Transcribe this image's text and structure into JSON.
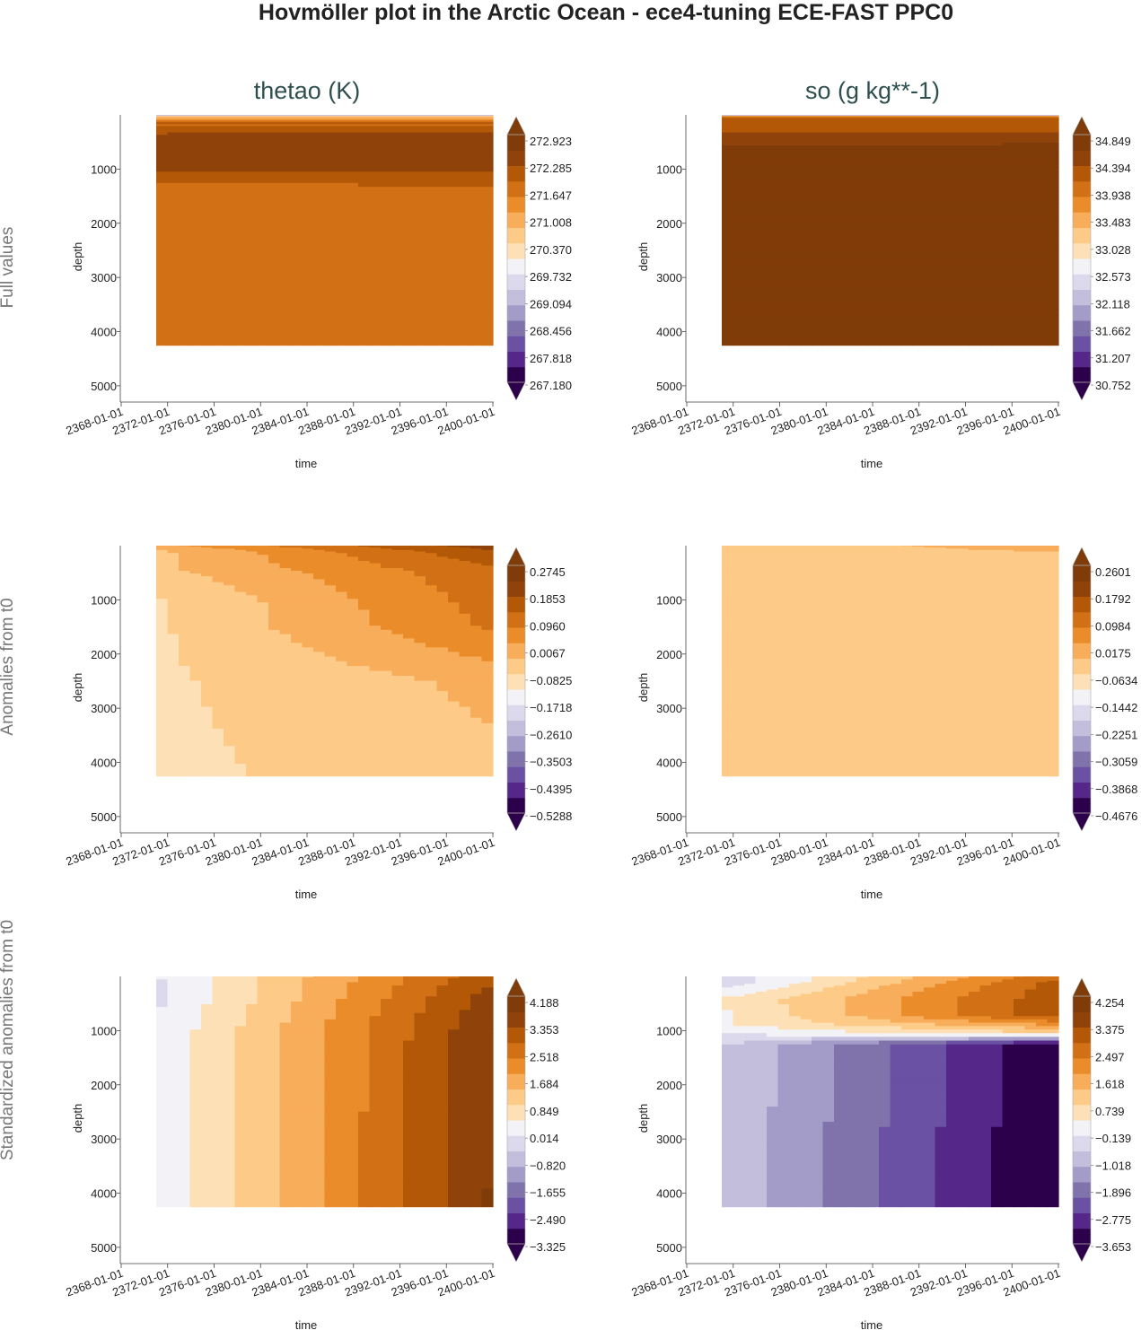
{
  "title": "Hovmöller plot in the Arctic Ocean - ece4-tuning ECE-FAST PPC0",
  "column_titles": [
    "thetao (K)",
    "so (g kg**-1)"
  ],
  "row_labels": [
    "Full values",
    "Anomalies from t0",
    "Standardized anomalies from t0"
  ],
  "colors": {
    "palette_PuOr_r_low_to_high": [
      "#2d004b",
      "#542788",
      "#6a51a3",
      "#8073ac",
      "#a39bc8",
      "#c2bedc",
      "#dcd9ec",
      "#f2f2f7",
      "#fee0b6",
      "#fdcb87",
      "#f8ad5a",
      "#ea8c2a",
      "#d17015",
      "#b35806",
      "#8f430a",
      "#7f3b08"
    ]
  },
  "chart_data": [
    {
      "type": "heatmap",
      "subtype": "filled-contour",
      "row": "Full values",
      "variable": "thetao (K)",
      "xlabel": "time",
      "ylabel": "depth",
      "xticks": [
        "2368-01-01",
        "2372-01-01",
        "2376-01-01",
        "2380-01-01",
        "2384-01-01",
        "2388-01-01",
        "2392-01-01",
        "2396-01-01",
        "2400-01-01"
      ],
      "yticks": [
        1000,
        2000,
        3000,
        4000,
        5000
      ],
      "ylim": [
        5300,
        0
      ],
      "data_depth_range": [
        0,
        4250
      ],
      "time_range": [
        "2369-10-01",
        "2400-06-01"
      ],
      "colorbar": [
        267.18,
        267.818,
        268.456,
        269.094,
        269.732,
        270.37,
        271.008,
        271.647,
        272.285,
        272.923
      ],
      "depth_profile": [
        [
          0,
          268.6
        ],
        [
          30,
          270.9
        ],
        [
          80,
          271.5
        ],
        [
          150,
          272.3
        ],
        [
          200,
          272.1
        ],
        [
          400,
          272.7
        ],
        [
          1000,
          272.6
        ],
        [
          1300,
          272.1
        ],
        [
          4250,
          272.0
        ]
      ],
      "depth_profile_end": [
        [
          0,
          268.6
        ],
        [
          30,
          270.9
        ],
        [
          80,
          271.5
        ],
        [
          150,
          272.3
        ],
        [
          200,
          272.1
        ],
        [
          400,
          272.8
        ],
        [
          1000,
          272.6
        ],
        [
          1350,
          272.1
        ],
        [
          4250,
          272.0
        ]
      ]
    },
    {
      "type": "heatmap",
      "subtype": "filled-contour",
      "row": "Full values",
      "variable": "so (g kg**-1)",
      "xlabel": "time",
      "ylabel": "depth",
      "xticks": [
        "2368-01-01",
        "2372-01-01",
        "2376-01-01",
        "2380-01-01",
        "2384-01-01",
        "2388-01-01",
        "2392-01-01",
        "2396-01-01",
        "2400-01-01"
      ],
      "yticks": [
        1000,
        2000,
        3000,
        4000,
        5000
      ],
      "ylim": [
        5300,
        0
      ],
      "data_depth_range": [
        0,
        4250
      ],
      "time_range": [
        "2369-10-01",
        "2400-06-01"
      ],
      "colorbar": [
        30.752,
        31.207,
        31.662,
        32.118,
        32.573,
        33.028,
        33.483,
        33.938,
        34.394,
        34.849
      ],
      "depth_profile": [
        [
          0,
          31.5
        ],
        [
          20,
          33.7
        ],
        [
          60,
          34.3
        ],
        [
          250,
          34.5
        ],
        [
          600,
          34.9
        ],
        [
          4250,
          34.92
        ]
      ],
      "depth_profile_end": [
        [
          0,
          31.5
        ],
        [
          20,
          33.7
        ],
        [
          60,
          34.3
        ],
        [
          250,
          34.5
        ],
        [
          580,
          34.9
        ],
        [
          4250,
          34.92
        ]
      ]
    },
    {
      "type": "heatmap",
      "subtype": "filled-contour",
      "row": "Anomalies from t0",
      "variable": "thetao (K)",
      "xlabel": "time",
      "ylabel": "depth",
      "xticks": [
        "2368-01-01",
        "2372-01-01",
        "2376-01-01",
        "2380-01-01",
        "2384-01-01",
        "2388-01-01",
        "2392-01-01",
        "2396-01-01",
        "2400-01-01"
      ],
      "yticks": [
        1000,
        2000,
        3000,
        4000,
        5000
      ],
      "ylim": [
        5300,
        0
      ],
      "data_depth_range": [
        0,
        4250
      ],
      "time_range": [
        "2369-10-01",
        "2400-06-01"
      ],
      "colorbar": [
        -0.5288,
        -0.4395,
        -0.3503,
        -0.261,
        -0.1718,
        -0.0825,
        0.0067,
        0.096,
        0.1853,
        0.2745
      ],
      "depth_profile": [
        [
          0,
          0.05
        ],
        [
          100,
          0.0
        ],
        [
          400,
          0.0
        ],
        [
          1000,
          -0.05
        ],
        [
          4250,
          -0.06
        ]
      ],
      "depth_profile_end": [
        [
          0,
          0.25
        ],
        [
          150,
          0.2
        ],
        [
          500,
          0.15
        ],
        [
          1500,
          0.12
        ],
        [
          2500,
          0.02
        ],
        [
          4250,
          -0.01
        ]
      ]
    },
    {
      "type": "heatmap",
      "subtype": "filled-contour",
      "row": "Anomalies from t0",
      "variable": "so (g kg**-1)",
      "xlabel": "time",
      "ylabel": "depth",
      "xticks": [
        "2368-01-01",
        "2372-01-01",
        "2376-01-01",
        "2380-01-01",
        "2384-01-01",
        "2388-01-01",
        "2392-01-01",
        "2396-01-01",
        "2400-01-01"
      ],
      "yticks": [
        1000,
        2000,
        3000,
        4000,
        5000
      ],
      "ylim": [
        5300,
        0
      ],
      "data_depth_range": [
        0,
        4250
      ],
      "time_range": [
        "2369-10-01",
        "2400-06-01"
      ],
      "colorbar": [
        -0.4676,
        -0.3868,
        -0.3059,
        -0.2251,
        -0.1442,
        -0.0634,
        0.0175,
        0.0984,
        0.1792,
        0.2601
      ],
      "depth_profile": [
        [
          0,
          -0.02
        ],
        [
          100,
          -0.03
        ],
        [
          4250,
          -0.03
        ]
      ],
      "depth_profile_end": [
        [
          0,
          0.05
        ],
        [
          80,
          0.03
        ],
        [
          200,
          -0.02
        ],
        [
          4250,
          -0.03
        ]
      ]
    },
    {
      "type": "heatmap",
      "subtype": "filled-contour",
      "row": "Standardized anomalies from t0",
      "variable": "thetao (K)",
      "xlabel": "time",
      "ylabel": "depth",
      "xticks": [
        "2368-01-01",
        "2372-01-01",
        "2376-01-01",
        "2380-01-01",
        "2384-01-01",
        "2388-01-01",
        "2392-01-01",
        "2396-01-01",
        "2400-01-01"
      ],
      "yticks": [
        1000,
        2000,
        3000,
        4000,
        5000
      ],
      "ylim": [
        5300,
        0
      ],
      "data_depth_range": [
        0,
        4250
      ],
      "time_range": [
        "2369-10-01",
        "2400-06-01"
      ],
      "colorbar": [
        -3.325,
        -2.49,
        -1.655,
        -0.82,
        0.014,
        0.849,
        1.684,
        2.518,
        3.353,
        4.188
      ],
      "depth_profile": [
        [
          0,
          0.2
        ],
        [
          300,
          0.1
        ],
        [
          1000,
          0.3
        ],
        [
          4250,
          0.3
        ]
      ],
      "depth_profile_end": [
        [
          0,
          3.5
        ],
        [
          300,
          3.8
        ],
        [
          1000,
          4.1
        ],
        [
          4250,
          4.2
        ]
      ]
    },
    {
      "type": "heatmap",
      "subtype": "filled-contour",
      "row": "Standardized anomalies from t0",
      "variable": "so (g kg**-1)",
      "xlabel": "time",
      "ylabel": "depth",
      "xticks": [
        "2368-01-01",
        "2372-01-01",
        "2376-01-01",
        "2380-01-01",
        "2384-01-01",
        "2388-01-01",
        "2392-01-01",
        "2396-01-01",
        "2400-01-01"
      ],
      "yticks": [
        1000,
        2000,
        3000,
        4000,
        5000
      ],
      "ylim": [
        5300,
        0
      ],
      "data_depth_range": [
        0,
        4250
      ],
      "time_range": [
        "2369-10-01",
        "2400-06-01"
      ],
      "colorbar": [
        -3.653,
        -2.775,
        -1.896,
        -1.018,
        -0.139,
        0.739,
        1.618,
        2.497,
        3.375,
        4.254
      ],
      "depth_profile": [
        [
          0,
          -0.3
        ],
        [
          100,
          -0.3
        ],
        [
          400,
          0.6
        ],
        [
          900,
          0.5
        ],
        [
          1300,
          -0.6
        ],
        [
          4250,
          -0.6
        ]
      ],
      "depth_profile_end": [
        [
          0,
          3.0
        ],
        [
          150,
          3.4
        ],
        [
          700,
          3.6
        ],
        [
          1050,
          1.0
        ],
        [
          1250,
          -3.6
        ],
        [
          4250,
          -3.7
        ]
      ]
    }
  ]
}
